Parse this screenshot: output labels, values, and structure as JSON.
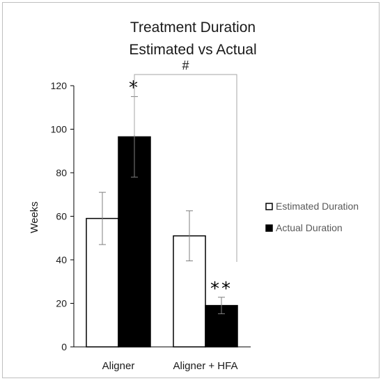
{
  "chart_data": {
    "type": "bar",
    "title": [
      "Treatment Duration",
      "Estimated vs Actual"
    ],
    "xlabel": "",
    "ylabel": "Weeks",
    "categories": [
      "Aligner",
      "Aligner + HFA"
    ],
    "ylim": [
      0,
      120
    ],
    "yticks": [
      0,
      20,
      40,
      60,
      80,
      100,
      120
    ],
    "grid": false,
    "legend_position": "right",
    "series": [
      {
        "name": "Estimated Duration",
        "values": [
          59,
          51
        ],
        "error": [
          12,
          11.5
        ],
        "fill": "#ffffff",
        "stroke": "#000000"
      },
      {
        "name": "Actual Duration",
        "values": [
          96.5,
          19
        ],
        "error": [
          18.5,
          3.8
        ],
        "fill": "#000000",
        "stroke": "#000000"
      }
    ],
    "annotations": [
      {
        "text": "*",
        "category": 0,
        "series": 1
      },
      {
        "text": "**",
        "category": 1,
        "series": 1
      },
      {
        "text": "#",
        "type": "bracket",
        "from": [
          0,
          1
        ],
        "to": [
          1,
          1
        ]
      }
    ]
  }
}
